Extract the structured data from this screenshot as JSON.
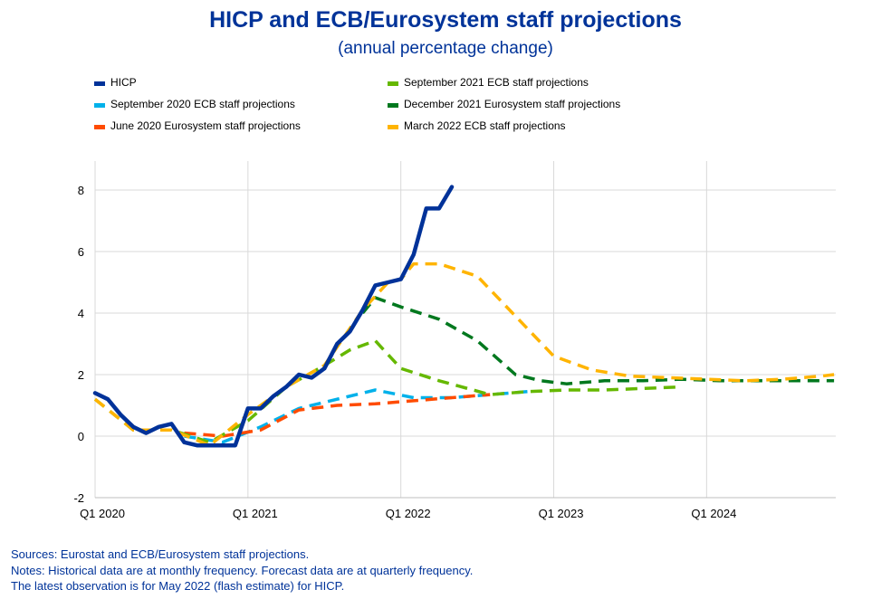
{
  "chart_data": {
    "type": "line",
    "title": "HICP and ECB/Eurosystem staff projections",
    "subtitle": "(annual percentage change)",
    "xlabel": "",
    "ylabel": "",
    "ylim": [
      -2,
      9
    ],
    "yticks": [
      -2,
      0,
      2,
      4,
      6,
      8
    ],
    "ytick_labels": [
      "-2",
      "0",
      "2",
      "4",
      "6",
      "8"
    ],
    "xtick_labels": [
      "Q1 2020",
      "Q1 2021",
      "Q1 2022",
      "Q1 2023",
      "Q1 2024"
    ],
    "x_unit": "months since Jan 2020",
    "xticks": [
      0,
      12,
      24,
      36,
      48
    ],
    "xlim": [
      0,
      58
    ],
    "grid": true,
    "legend_position": "top",
    "series": [
      {
        "name": "HICP",
        "color": "#003299",
        "dashed": false,
        "x": [
          0,
          1,
          2,
          3,
          4,
          5,
          6,
          7,
          8,
          9,
          10,
          11,
          12,
          13,
          14,
          15,
          16,
          17,
          18,
          19,
          20,
          21,
          22,
          23,
          24,
          25,
          26,
          27,
          28
        ],
        "values": [
          1.4,
          1.2,
          0.7,
          0.3,
          0.1,
          0.3,
          0.4,
          -0.2,
          -0.3,
          -0.3,
          -0.3,
          -0.3,
          0.9,
          0.9,
          1.3,
          1.6,
          2.0,
          1.9,
          2.2,
          3.0,
          3.4,
          4.1,
          4.9,
          5.0,
          5.1,
          5.9,
          7.4,
          7.4,
          8.1
        ]
      },
      {
        "name": "September 2020 ECB staff projections",
        "color": "#00B1EA",
        "dashed": true,
        "x": [
          7,
          10,
          13,
          16,
          19,
          22,
          25,
          28,
          31,
          34
        ],
        "values": [
          0.0,
          -0.2,
          0.3,
          0.9,
          1.2,
          1.5,
          1.25,
          1.25,
          1.35,
          1.45
        ]
      },
      {
        "name": "June 2020 Eurosystem staff projections",
        "color": "#FF4B00",
        "dashed": true,
        "x": [
          7,
          10,
          13,
          16,
          19,
          22,
          25,
          28,
          31
        ],
        "values": [
          0.1,
          0.0,
          0.2,
          0.85,
          1.0,
          1.05,
          1.15,
          1.25,
          1.35
        ]
      },
      {
        "name": "September 2021 ECB staff projections",
        "color": "#65B800",
        "dashed": true,
        "x": [
          0,
          3,
          6,
          9,
          12,
          15,
          18,
          20,
          22,
          24,
          27,
          31,
          34,
          37,
          40,
          43,
          46
        ],
        "values": [
          1.2,
          0.2,
          0.2,
          -0.2,
          0.5,
          1.6,
          2.3,
          2.8,
          3.1,
          2.2,
          1.8,
          1.35,
          1.45,
          1.5,
          1.5,
          1.55,
          1.6
        ]
      },
      {
        "name": "December 2021 Eurosystem staff projections",
        "color": "#00781E",
        "dashed": true,
        "x": [
          21,
          22,
          24,
          27,
          30,
          33,
          35,
          37,
          40,
          43,
          46,
          49,
          52,
          55,
          58
        ],
        "values": [
          4.0,
          4.5,
          4.2,
          3.8,
          3.1,
          2.0,
          1.8,
          1.7,
          1.8,
          1.8,
          1.85,
          1.8,
          1.8,
          1.8,
          1.8
        ]
      },
      {
        "name": "March 2022 ECB staff projections",
        "color": "#FFB400",
        "dashed": true,
        "x": [
          0,
          3,
          6,
          9,
          12,
          15,
          18,
          21,
          23,
          24,
          25,
          27,
          30,
          33,
          36,
          39,
          42,
          45,
          48,
          51,
          54,
          57,
          58
        ],
        "values": [
          1.2,
          0.2,
          0.2,
          -0.3,
          0.7,
          1.6,
          2.3,
          4.1,
          5.0,
          5.1,
          5.6,
          5.6,
          5.2,
          3.9,
          2.6,
          2.15,
          1.95,
          1.9,
          1.85,
          1.8,
          1.85,
          1.95,
          2.0
        ]
      }
    ]
  },
  "legend": [
    {
      "label": "HICP",
      "color": "#003299"
    },
    {
      "label": "September 2020 ECB staff projections",
      "color": "#00B1EA"
    },
    {
      "label": "June 2020 Eurosystem staff projections",
      "color": "#FF4B00"
    },
    {
      "label": "September 2021 ECB staff projections",
      "color": "#65B800"
    },
    {
      "label": "December 2021 Eurosystem staff projections",
      "color": "#00781E"
    },
    {
      "label": "March 2022 ECB staff projections",
      "color": "#FFB400"
    }
  ],
  "notes": {
    "sources": "Sources: Eurostat and ECB/Eurosystem staff projections.",
    "notes": "Notes: Historical data are at monthly frequency. Forecast data are at quarterly frequency.",
    "latest": "The latest observation is for May 2022 (flash estimate) for HICP."
  }
}
